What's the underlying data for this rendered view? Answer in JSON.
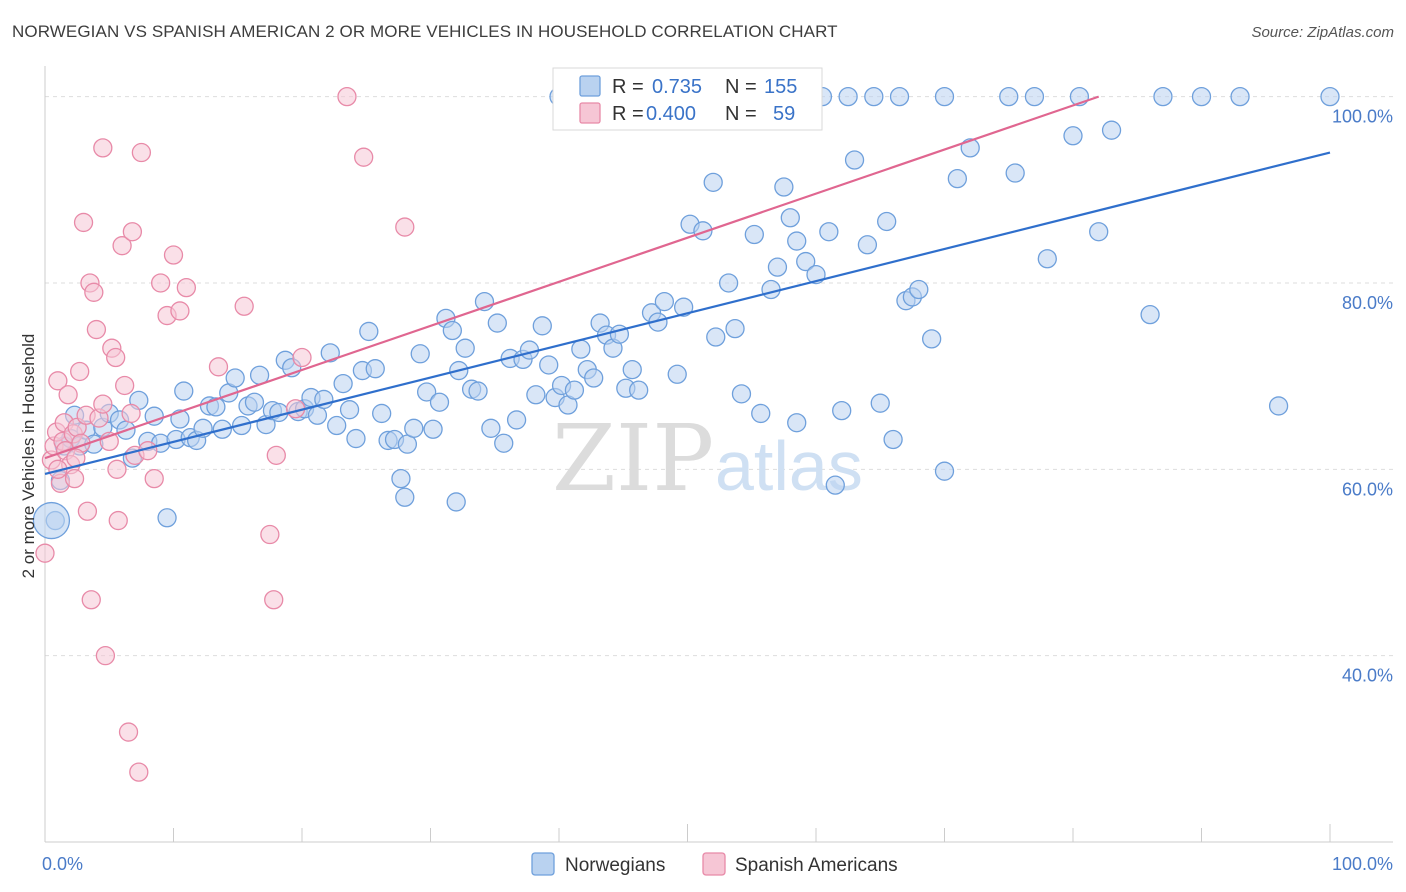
{
  "title": "NORWEGIAN VS SPANISH AMERICAN 2 OR MORE VEHICLES IN HOUSEHOLD CORRELATION CHART",
  "source": "Source: ZipAtlas.com",
  "watermark": {
    "zip": "ZIP",
    "atlas": "atlas"
  },
  "colors": {
    "norwegians": "#6fa0dc",
    "norwegians_fill": "#b9d2f0",
    "norwegians_line": "#2f6fcc",
    "spanish": "#e88aa8",
    "spanish_fill": "#f6c6d5",
    "spanish_line": "#e06690",
    "tick_label": "#4a7bc8",
    "grid": "#dddddd"
  },
  "legend": {
    "rows": [
      {
        "r_label": "R =",
        "r_value": "0.735",
        "n_label": "N =",
        "n_value": "155"
      },
      {
        "r_label": "R =",
        "r_value": "0.400",
        "n_label": "N =",
        "n_value": "59"
      }
    ]
  },
  "chart_data": {
    "type": "scatter",
    "title": "NORWEGIAN VS SPANISH AMERICAN 2 OR MORE VEHICLES IN HOUSEHOLD CORRELATION CHART",
    "xlabel": "",
    "ylabel": "2 or more Vehicles in Household",
    "xlim": [
      0,
      100
    ],
    "ylim": [
      20,
      102
    ],
    "x_tick_labels": [
      "0.0%",
      "100.0%"
    ],
    "y_ticks": [
      40,
      60,
      80,
      100
    ],
    "y_tick_labels": [
      "40.0%",
      "60.0%",
      "80.0%",
      "100.0%"
    ],
    "grid": true,
    "legend_position": "bottom-center",
    "series": [
      {
        "name": "Norwegians",
        "r": 0.735,
        "n": 155,
        "trend": {
          "x": [
            0,
            100
          ],
          "y": [
            59.5,
            94.0
          ]
        },
        "points": [
          [
            0.8,
            54.5
          ],
          [
            1.2,
            58.8
          ],
          [
            1.5,
            62.5
          ],
          [
            2.0,
            63.3
          ],
          [
            2.3,
            65.8
          ],
          [
            2.7,
            62.5
          ],
          [
            3.2,
            64.2
          ],
          [
            3.8,
            62.7
          ],
          [
            4.5,
            64.5
          ],
          [
            5.0,
            66.0
          ],
          [
            5.8,
            65.3
          ],
          [
            6.3,
            64.2
          ],
          [
            6.8,
            61.2
          ],
          [
            7.3,
            67.4
          ],
          [
            8.0,
            63.0
          ],
          [
            8.5,
            65.7
          ],
          [
            9.0,
            62.8
          ],
          [
            9.5,
            54.8
          ],
          [
            10.2,
            63.2
          ],
          [
            10.5,
            65.4
          ],
          [
            10.8,
            68.4
          ],
          [
            11.3,
            63.4
          ],
          [
            11.8,
            63.1
          ],
          [
            12.3,
            64.4
          ],
          [
            12.8,
            66.8
          ],
          [
            13.3,
            66.7
          ],
          [
            13.8,
            64.3
          ],
          [
            14.3,
            68.2
          ],
          [
            14.8,
            69.8
          ],
          [
            15.3,
            64.7
          ],
          [
            15.8,
            66.8
          ],
          [
            16.3,
            67.2
          ],
          [
            16.7,
            70.1
          ],
          [
            17.2,
            64.8
          ],
          [
            17.7,
            66.3
          ],
          [
            18.2,
            66.1
          ],
          [
            18.7,
            71.7
          ],
          [
            19.2,
            70.9
          ],
          [
            19.7,
            66.2
          ],
          [
            20.2,
            66.5
          ],
          [
            20.7,
            67.7
          ],
          [
            21.2,
            65.8
          ],
          [
            21.7,
            67.5
          ],
          [
            22.2,
            72.5
          ],
          [
            22.7,
            64.7
          ],
          [
            23.2,
            69.2
          ],
          [
            23.7,
            66.4
          ],
          [
            24.2,
            63.3
          ],
          [
            24.7,
            70.6
          ],
          [
            25.2,
            74.8
          ],
          [
            25.7,
            70.8
          ],
          [
            26.2,
            66.0
          ],
          [
            26.7,
            63.1
          ],
          [
            27.2,
            63.2
          ],
          [
            27.7,
            59.0
          ],
          [
            28.2,
            62.7
          ],
          [
            28.7,
            64.4
          ],
          [
            29.2,
            72.4
          ],
          [
            29.7,
            68.3
          ],
          [
            30.2,
            64.3
          ],
          [
            30.7,
            67.2
          ],
          [
            31.2,
            76.2
          ],
          [
            31.7,
            74.9
          ],
          [
            32.2,
            70.6
          ],
          [
            32.7,
            73.0
          ],
          [
            33.2,
            68.6
          ],
          [
            33.7,
            68.4
          ],
          [
            34.2,
            78.0
          ],
          [
            34.7,
            64.4
          ],
          [
            35.2,
            75.7
          ],
          [
            35.7,
            62.8
          ],
          [
            36.2,
            71.9
          ],
          [
            36.7,
            65.3
          ],
          [
            37.2,
            71.8
          ],
          [
            37.7,
            72.8
          ],
          [
            38.2,
            68.0
          ],
          [
            38.7,
            75.4
          ],
          [
            39.2,
            71.2
          ],
          [
            39.7,
            67.7
          ],
          [
            40.2,
            69.0
          ],
          [
            40.7,
            66.9
          ],
          [
            41.2,
            68.5
          ],
          [
            41.7,
            72.9
          ],
          [
            42.2,
            70.7
          ],
          [
            42.7,
            69.8
          ],
          [
            43.2,
            75.7
          ],
          [
            43.7,
            74.4
          ],
          [
            44.2,
            73.0
          ],
          [
            44.7,
            74.5
          ],
          [
            45.2,
            68.7
          ],
          [
            45.7,
            70.7
          ],
          [
            46.2,
            68.5
          ],
          [
            47.2,
            76.8
          ],
          [
            47.7,
            75.8
          ],
          [
            48.2,
            78.0
          ],
          [
            49.2,
            70.2
          ],
          [
            49.7,
            77.4
          ],
          [
            50.2,
            86.3
          ],
          [
            51.2,
            85.6
          ],
          [
            52.2,
            74.2
          ],
          [
            53.2,
            80.0
          ],
          [
            53.7,
            75.1
          ],
          [
            54.2,
            68.1
          ],
          [
            55.2,
            85.2
          ],
          [
            55.7,
            66.0
          ],
          [
            56.5,
            79.3
          ],
          [
            57.0,
            81.7
          ],
          [
            57.5,
            90.3
          ],
          [
            58.0,
            87.0
          ],
          [
            58.5,
            84.5
          ],
          [
            59.2,
            82.3
          ],
          [
            60.0,
            80.9
          ],
          [
            61.0,
            85.5
          ],
          [
            62.0,
            66.3
          ],
          [
            63.0,
            93.2
          ],
          [
            64.0,
            84.1
          ],
          [
            65.0,
            67.1
          ],
          [
            65.5,
            86.6
          ],
          [
            66.0,
            63.2
          ],
          [
            67.0,
            78.1
          ],
          [
            67.5,
            78.5
          ],
          [
            68.0,
            79.3
          ],
          [
            69.0,
            74.0
          ],
          [
            70.0,
            59.8
          ],
          [
            71.0,
            91.2
          ],
          [
            72.0,
            94.5
          ],
          [
            75.5,
            91.8
          ],
          [
            78.0,
            82.6
          ],
          [
            80.0,
            95.8
          ],
          [
            82.0,
            85.5
          ],
          [
            83.0,
            96.4
          ],
          [
            86.0,
            76.6
          ],
          [
            87.0,
            100.0
          ],
          [
            90.0,
            100.0
          ],
          [
            93.0,
            100.0
          ],
          [
            96.0,
            66.8
          ],
          [
            100.0,
            100.0
          ],
          [
            52.0,
            90.8
          ],
          [
            61.5,
            58.3
          ],
          [
            58.5,
            65.0
          ],
          [
            28.0,
            57.0
          ],
          [
            32.0,
            56.5
          ],
          [
            75.0,
            100.0
          ],
          [
            80.5,
            100.0
          ],
          [
            70.0,
            100.0
          ],
          [
            66.5,
            100.0
          ],
          [
            64.5,
            100.0
          ],
          [
            62.5,
            100.0
          ],
          [
            60.5,
            100.0
          ],
          [
            77.0,
            100.0
          ],
          [
            58.0,
            100.0
          ],
          [
            54.0,
            100.0
          ],
          [
            50.5,
            100.0
          ],
          [
            48.5,
            100.0
          ],
          [
            46.0,
            100.0
          ],
          [
            44.0,
            100.0
          ],
          [
            42.0,
            100.0
          ],
          [
            40.0,
            100.0
          ],
          [
            52.5,
            100.0
          ]
        ],
        "big_points": [
          [
            0.5,
            54.5
          ]
        ]
      },
      {
        "name": "Spanish Americans",
        "r": 0.4,
        "n": 59,
        "trend": {
          "x": [
            0,
            82
          ],
          "y": [
            61.2,
            100.0
          ]
        },
        "points": [
          [
            0.0,
            51.0
          ],
          [
            0.5,
            61.0
          ],
          [
            0.7,
            62.5
          ],
          [
            0.9,
            64.0
          ],
          [
            1.0,
            69.5
          ],
          [
            1.2,
            58.5
          ],
          [
            1.4,
            63.0
          ],
          [
            1.5,
            65.0
          ],
          [
            1.6,
            62.0
          ],
          [
            1.8,
            68.0
          ],
          [
            2.0,
            60.5
          ],
          [
            2.2,
            63.8
          ],
          [
            2.3,
            59.0
          ],
          [
            2.5,
            64.5
          ],
          [
            2.7,
            70.5
          ],
          [
            2.8,
            62.8
          ],
          [
            3.0,
            86.5
          ],
          [
            3.2,
            65.8
          ],
          [
            3.3,
            55.5
          ],
          [
            3.5,
            80.0
          ],
          [
            3.6,
            46.0
          ],
          [
            3.8,
            79.0
          ],
          [
            4.0,
            75.0
          ],
          [
            4.2,
            65.5
          ],
          [
            4.5,
            67.0
          ],
          [
            4.5,
            94.5
          ],
          [
            5.0,
            63.0
          ],
          [
            5.2,
            73.0
          ],
          [
            5.5,
            72.0
          ],
          [
            5.6,
            60.0
          ],
          [
            5.7,
            54.5
          ],
          [
            6.0,
            84.0
          ],
          [
            6.2,
            69.0
          ],
          [
            6.5,
            31.8
          ],
          [
            6.8,
            85.5
          ],
          [
            7.0,
            61.5
          ],
          [
            7.3,
            27.5
          ],
          [
            7.5,
            94.0
          ],
          [
            8.0,
            62.0
          ],
          [
            8.5,
            59.0
          ],
          [
            9.0,
            80.0
          ],
          [
            9.5,
            76.5
          ],
          [
            10.0,
            83.0
          ],
          [
            10.5,
            77.0
          ],
          [
            11.0,
            79.5
          ],
          [
            13.5,
            71.0
          ],
          [
            15.5,
            77.5
          ],
          [
            17.5,
            53.0
          ],
          [
            17.8,
            46.0
          ],
          [
            18.0,
            61.5
          ],
          [
            19.5,
            66.5
          ],
          [
            20.0,
            72.0
          ],
          [
            23.5,
            100.0
          ],
          [
            24.8,
            93.5
          ],
          [
            28.0,
            86.0
          ],
          [
            4.7,
            40.0
          ],
          [
            1.0,
            60.0
          ],
          [
            2.4,
            61.2
          ],
          [
            6.7,
            66.0
          ]
        ]
      }
    ]
  },
  "bottom_legend": [
    {
      "label": "Norwegians"
    },
    {
      "label": "Spanish Americans"
    }
  ]
}
